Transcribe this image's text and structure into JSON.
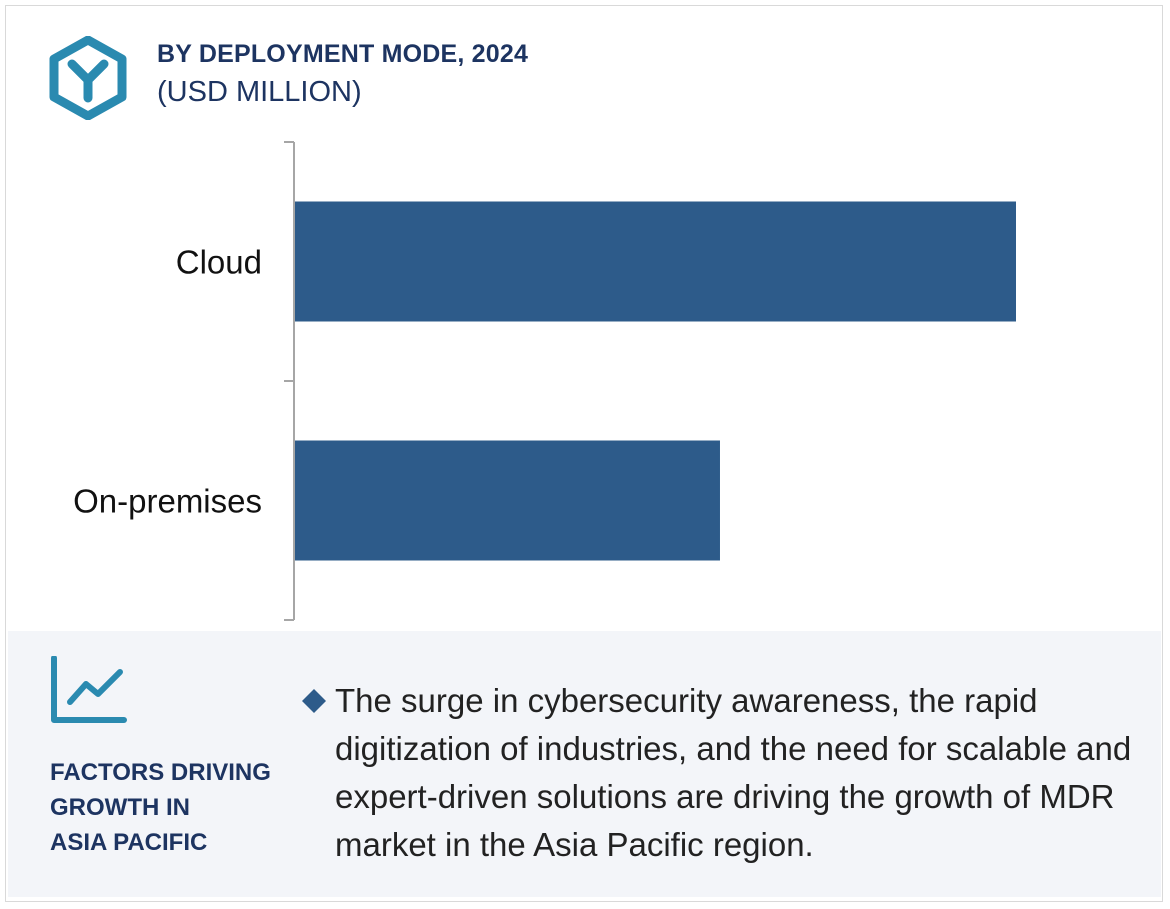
{
  "header": {
    "title": "BY DEPLOYMENT MODE, 2024",
    "subtitle": "(USD MILLION)"
  },
  "colors": {
    "bar": "#2d5b8a",
    "accent": "#2a8ab0",
    "title": "#1d3461"
  },
  "chart_data": {
    "type": "bar",
    "orientation": "horizontal",
    "title": "BY DEPLOYMENT MODE, 2024",
    "subtitle": "(USD MILLION)",
    "categories": [
      "Cloud",
      "On-premises"
    ],
    "values": [
      100,
      59
    ],
    "xlim": [
      0,
      100
    ],
    "xlabel": "",
    "ylabel": "",
    "grid": false,
    "legend": "none"
  },
  "panel": {
    "icon": "trend-chart-icon",
    "title_lines": [
      "FACTORS DRIVING",
      "GROWTH IN",
      "ASIA PACIFIC"
    ],
    "bullet_icon": "diamond-bullet-icon",
    "bullet_text": "The surge in cybersecurity awareness, the rapid digitization of industries, and the need for scalable and expert-driven solutions are driving the growth of MDR market in the Asia Pacific region."
  }
}
